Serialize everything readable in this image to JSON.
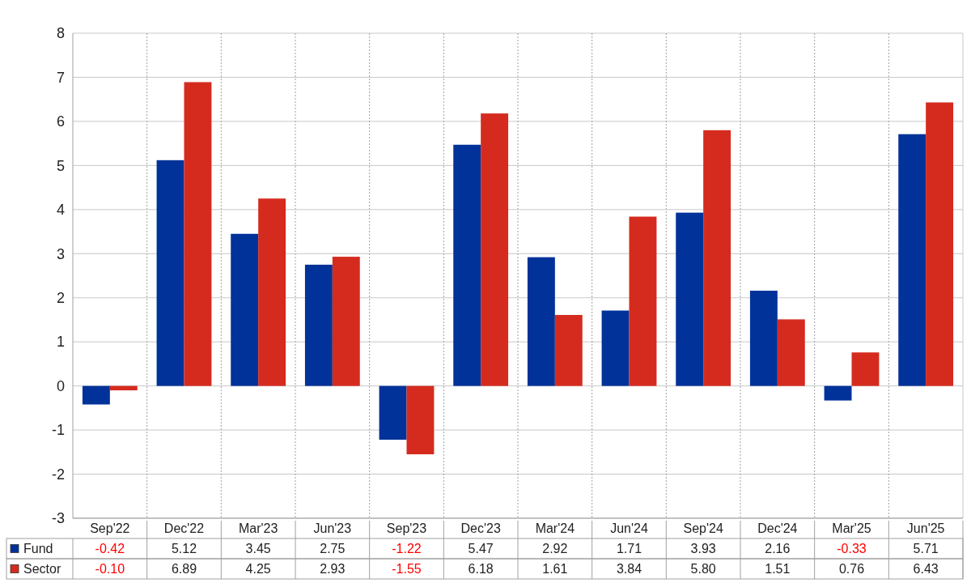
{
  "chart_data": {
    "type": "bar",
    "categories": [
      "Sep'22",
      "Dec'22",
      "Mar'23",
      "Jun'23",
      "Sep'23",
      "Dec'23",
      "Mar'24",
      "Jun'24",
      "Sep'24",
      "Dec'24",
      "Mar'25",
      "Jun'25"
    ],
    "series": [
      {
        "name": "Fund",
        "color": "#003299",
        "values": [
          -0.42,
          5.12,
          3.45,
          2.75,
          -1.22,
          5.47,
          2.92,
          1.71,
          3.93,
          2.16,
          -0.33,
          5.71
        ],
        "value_labels": [
          "-0.42",
          "5.12",
          "3.45",
          "2.75",
          "-1.22",
          "5.47",
          "2.92",
          "1.71",
          "3.93",
          "2.16",
          "-0.33",
          "5.71"
        ]
      },
      {
        "name": "Sector",
        "color": "#d52b1e",
        "values": [
          -0.1,
          6.89,
          4.25,
          2.93,
          -1.55,
          6.18,
          1.61,
          3.84,
          5.8,
          1.51,
          0.76,
          6.43
        ],
        "value_labels": [
          "-0.10",
          "6.89",
          "4.25",
          "2.93",
          "-1.55",
          "6.18",
          "1.61",
          "3.84",
          "5.80",
          "1.51",
          "0.76",
          "6.43"
        ]
      }
    ],
    "ylim": [
      -3,
      8
    ],
    "yticks": [
      -3,
      -2,
      -1,
      0,
      1,
      2,
      3,
      4,
      5,
      6,
      7,
      8
    ],
    "grid": true,
    "legend": "bottom"
  }
}
